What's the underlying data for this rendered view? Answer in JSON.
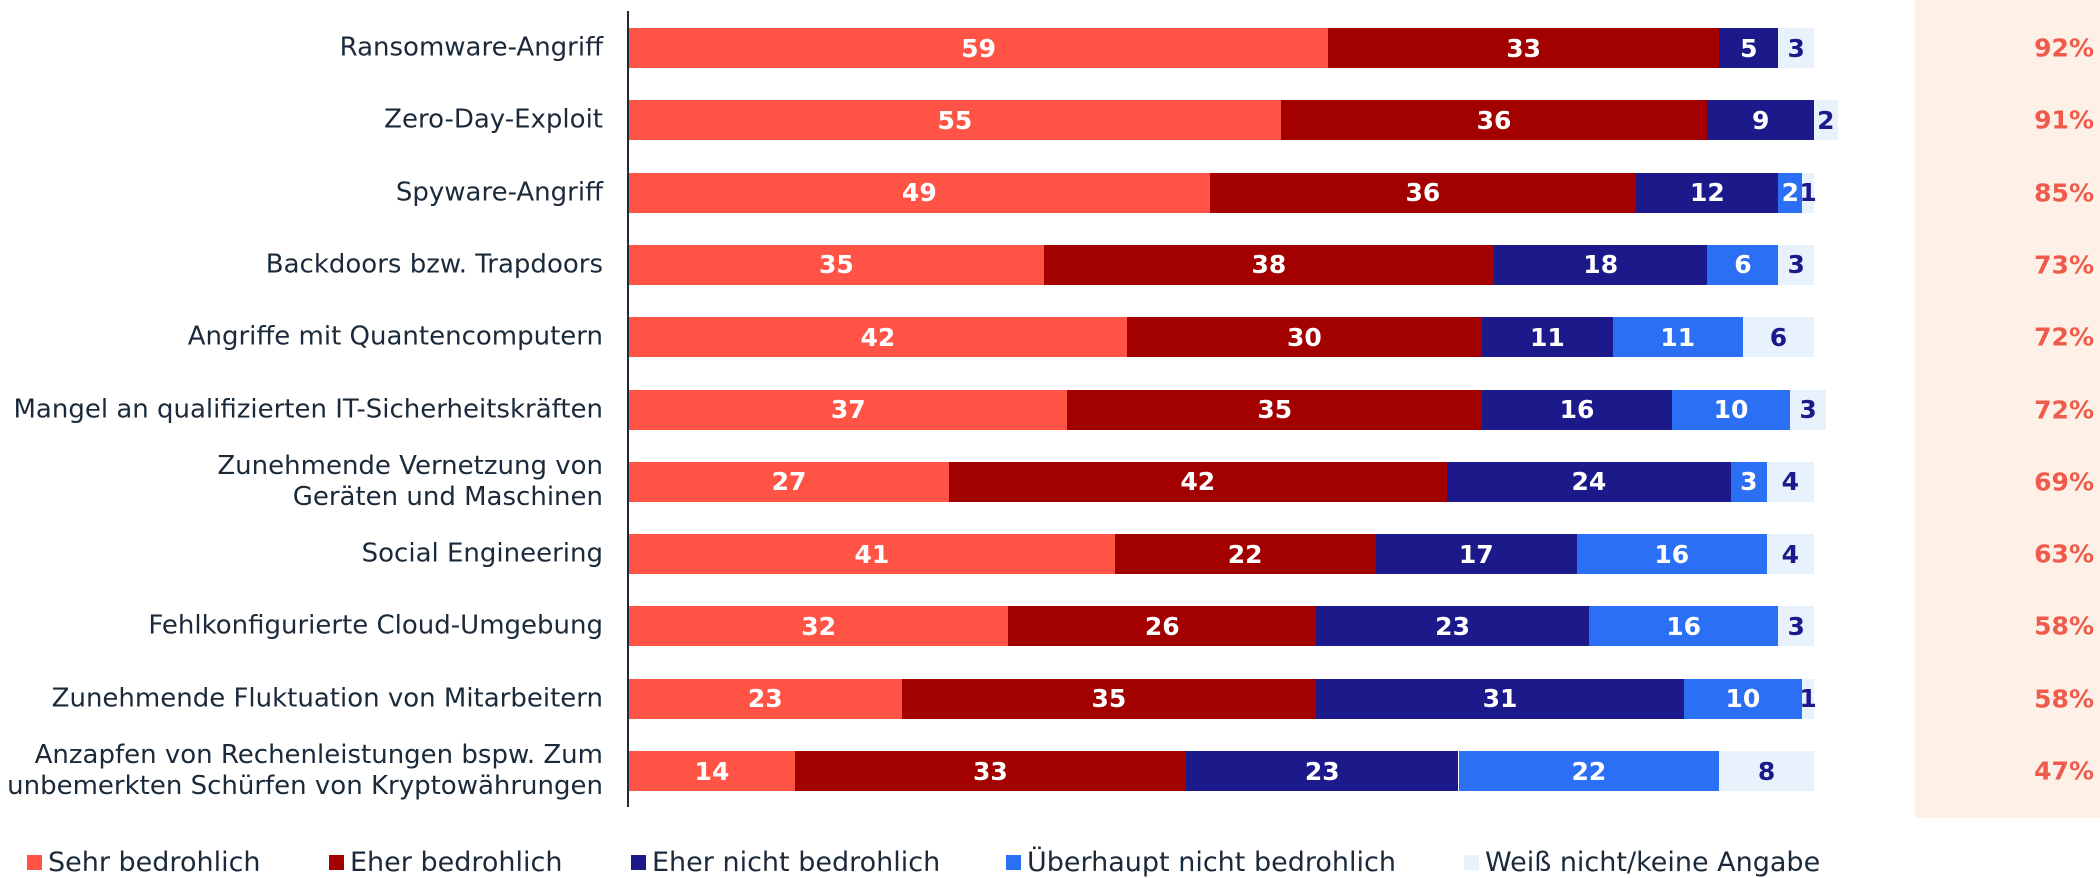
{
  "chart_data": {
    "type": "bar",
    "orientation": "horizontal",
    "stacked": true,
    "categories": [
      "Ransomware-Angriff",
      "Zero-Day-Exploit",
      "Spyware-Angriff",
      "Backdoors bzw. Trapdoors",
      "Angriffe mit Quantencomputern",
      "Mangel an qualifizierten IT-Sicherheitskräften",
      "Zunehmende Vernetzung von\nGeräten und Maschinen",
      "Social Engineering",
      "Fehlkonfigurierte Cloud-Umgebung",
      "Zunehmende Fluktuation von Mitarbeitern",
      "Anzapfen von Rechenleistungen bspw. Zum\nunbemerkten Schürfen von Kryptowährungen"
    ],
    "series": [
      {
        "name": "Sehr bedrohlich",
        "color": "#ff5445",
        "label_color": "#ffffff",
        "values": [
          59,
          55,
          49,
          35,
          42,
          37,
          27,
          41,
          32,
          23,
          14
        ]
      },
      {
        "name": "Eher bedrohlich",
        "color": "#a30000",
        "label_color": "#ffffff",
        "values": [
          33,
          36,
          36,
          38,
          30,
          35,
          42,
          22,
          26,
          35,
          33
        ]
      },
      {
        "name": "Eher nicht bedrohlich",
        "color": "#1c1a8a",
        "label_color": "#ffffff",
        "values": [
          5,
          9,
          12,
          18,
          11,
          16,
          24,
          17,
          23,
          31,
          23
        ]
      },
      {
        "name": "Überhaupt nicht bedrohlich",
        "color": "#2b6ff5",
        "label_color": "#ffffff",
        "values": [
          null,
          null,
          2,
          6,
          11,
          10,
          3,
          16,
          16,
          10,
          22
        ]
      },
      {
        "name": "Weiß nicht/keine Angabe",
        "color": "#e8f2fc",
        "label_color": "#1c1a8a",
        "values": [
          3,
          2,
          1,
          3,
          6,
          3,
          4,
          4,
          3,
          1,
          8
        ]
      }
    ],
    "totals": {
      "color": "#f05a4a",
      "values": [
        92,
        91,
        85,
        73,
        72,
        72,
        69,
        63,
        58,
        58,
        47
      ],
      "value_labels": [
        "92%",
        "91%",
        "85%",
        "73%",
        "72%",
        "72%",
        "69%",
        "63%",
        "58%",
        "58%",
        "47%"
      ]
    },
    "xlim": [
      0,
      100
    ]
  }
}
